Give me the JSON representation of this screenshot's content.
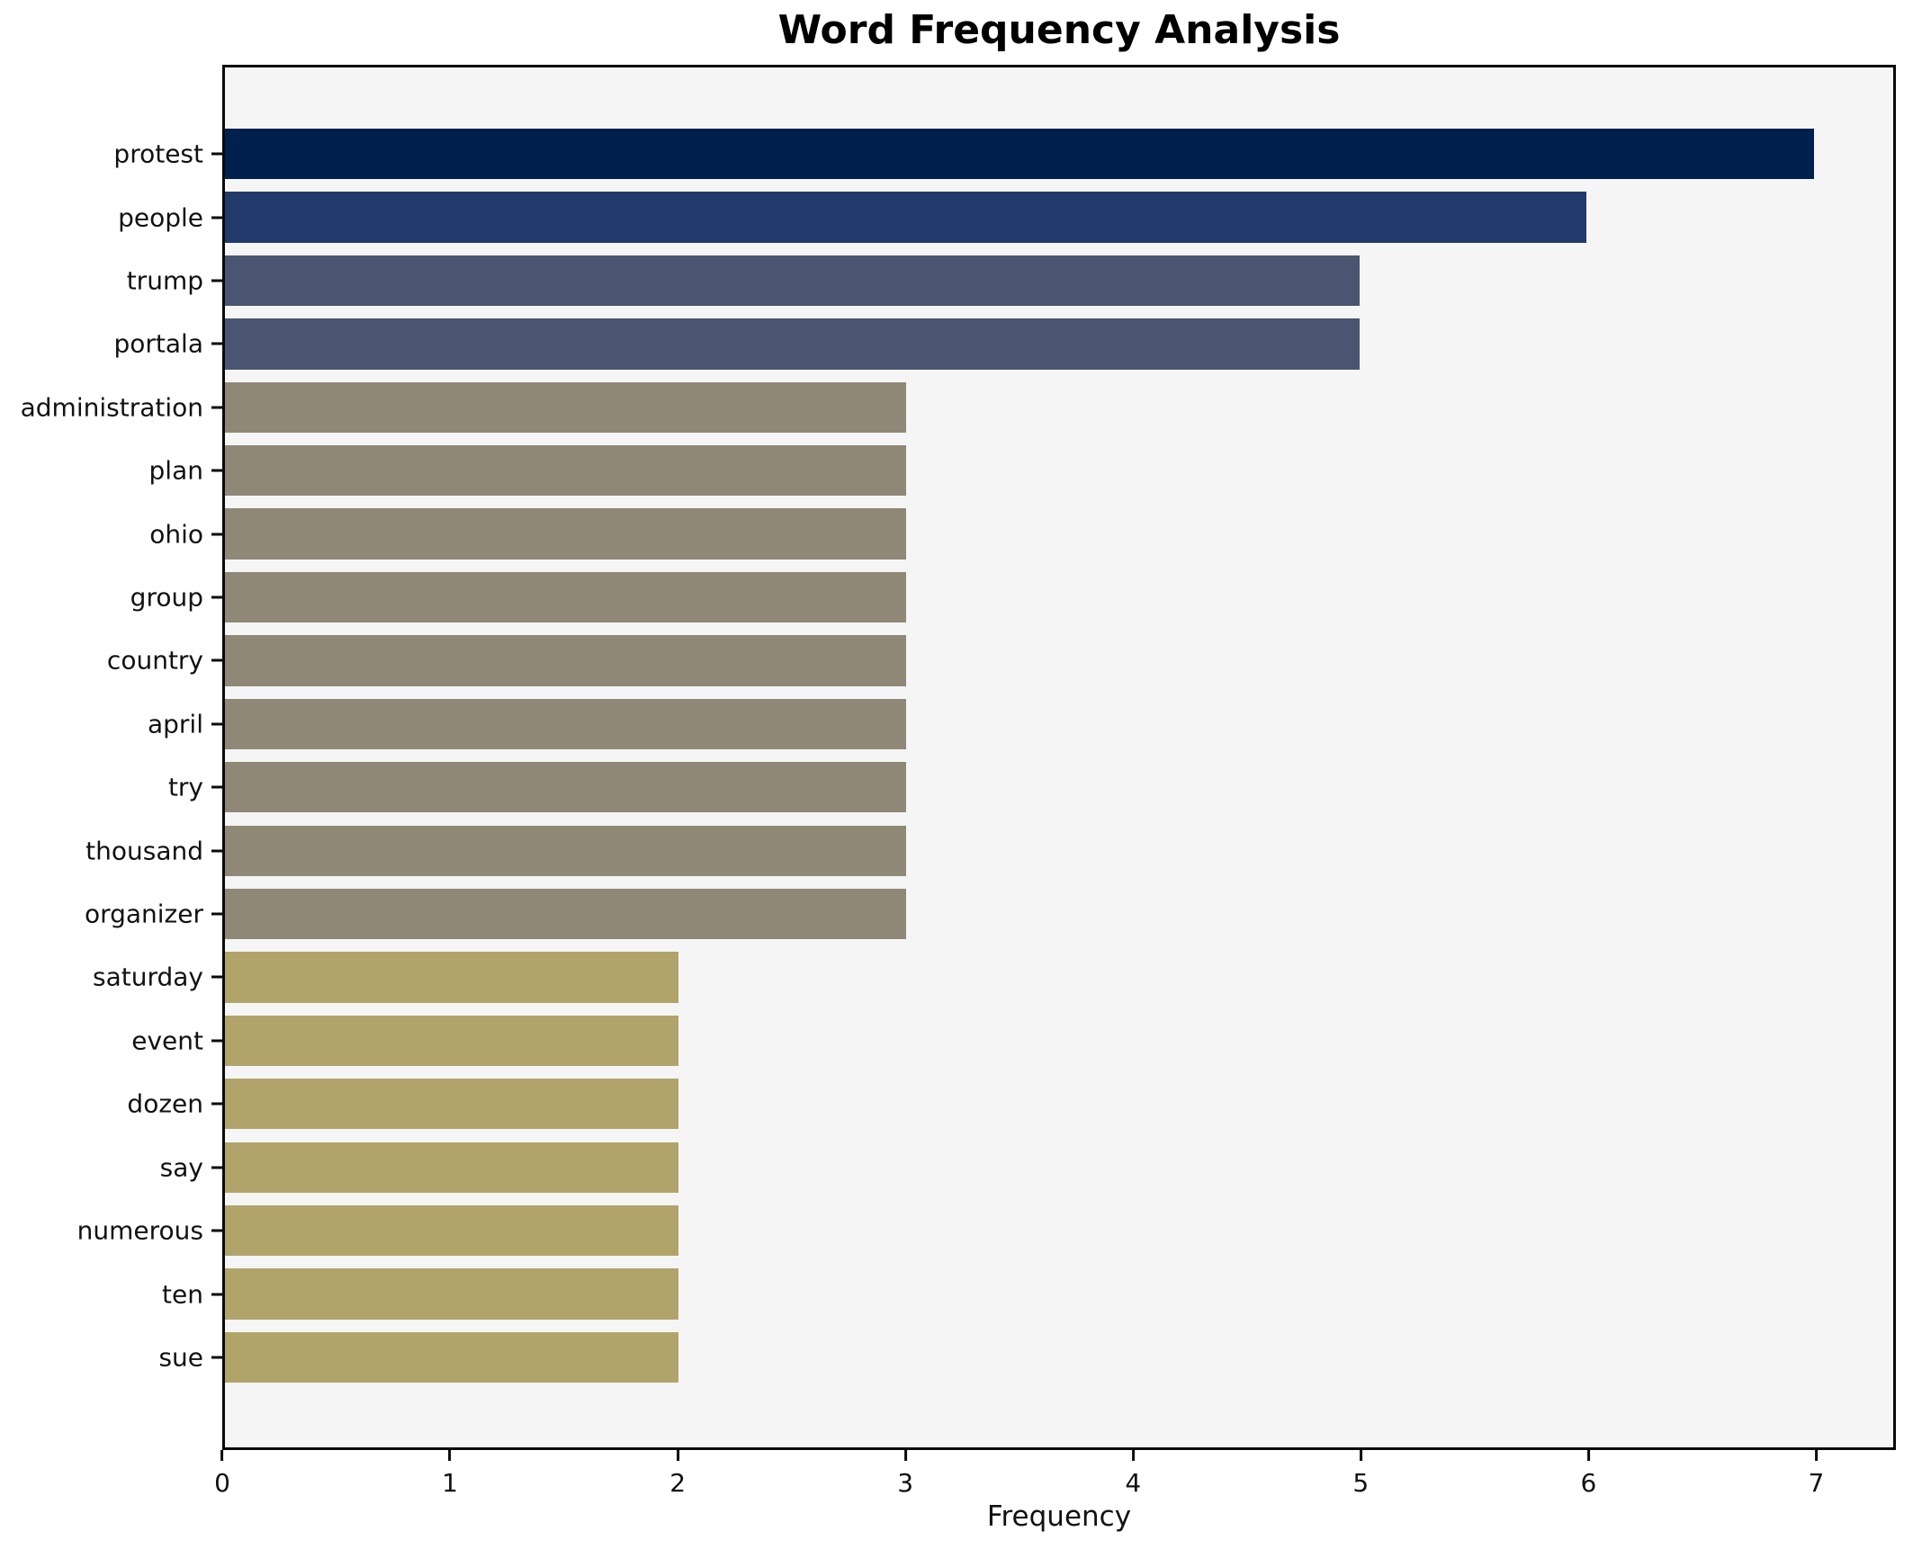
{
  "chart_data": {
    "type": "bar",
    "orientation": "horizontal",
    "title": "Word Frequency Analysis",
    "xlabel": "Frequency",
    "ylabel": "",
    "categories": [
      "protest",
      "people",
      "trump",
      "portala",
      "administration",
      "plan",
      "ohio",
      "group",
      "country",
      "april",
      "try",
      "thousand",
      "organizer",
      "saturday",
      "event",
      "dozen",
      "say",
      "numerous",
      "ten",
      "sue"
    ],
    "values": [
      7,
      6,
      5,
      5,
      3,
      3,
      3,
      3,
      3,
      3,
      3,
      3,
      3,
      2,
      2,
      2,
      2,
      2,
      2,
      2
    ],
    "bar_colors": [
      "#00214d",
      "#223a6b",
      "#4b5470",
      "#4b5470",
      "#8f8877",
      "#8f8877",
      "#8f8877",
      "#8f8877",
      "#8f8877",
      "#8f8877",
      "#8f8877",
      "#8f8877",
      "#8f8877",
      "#b0a46a",
      "#b0a46a",
      "#b0a46a",
      "#b0a46a",
      "#b0a46a",
      "#b0a46a",
      "#b0a46a"
    ],
    "value_colors": {
      "7": "#00214d",
      "6": "#223a6b",
      "5": "#4b5470",
      "3": "#8f8877",
      "2": "#b0a46a"
    },
    "x_ticks": [
      0,
      1,
      2,
      3,
      4,
      5,
      6,
      7
    ],
    "xlim": [
      0,
      7.35
    ],
    "grid": false,
    "legend": null,
    "plot_background": "#f5f5f5",
    "figure_background": "#ffffff",
    "axis_color": "#0a0a0a"
  }
}
